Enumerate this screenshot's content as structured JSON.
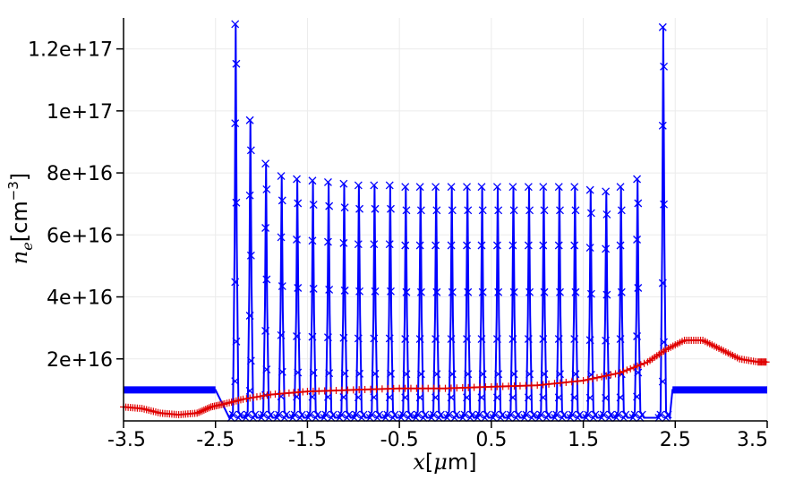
{
  "chart_data": {
    "type": "line",
    "title": "",
    "xlabel": {
      "var": "x",
      "open": "[",
      "unit_greek": "μ",
      "unit": "m",
      "close": "]"
    },
    "ylabel": {
      "var": "n",
      "sub": "e",
      "open": "[",
      "unit": "cm",
      "exp": "−3",
      "close": "]"
    },
    "xlim": [
      -3.5,
      3.5
    ],
    "ylim": [
      0,
      1.3e+17
    ],
    "x_ticks": [
      -3.5,
      -2.5,
      -1.5,
      -0.5,
      0.5,
      1.5,
      2.5,
      3.5
    ],
    "x_tick_labels": [
      "-3.5",
      "-2.5",
      "-1.5",
      "-0.5",
      "0.5",
      "1.5",
      "2.5",
      "3.5"
    ],
    "y_ticks": [
      2e+16,
      4e+16,
      6e+16,
      8e+16,
      1e+17,
      1.2e+17
    ],
    "y_tick_labels": [
      "2e+16",
      "4e+16",
      "6e+16",
      "8e+16",
      "1e+17",
      "1.2e+17"
    ],
    "grid": true,
    "legend": "none",
    "series": [
      {
        "color": "#0000ff",
        "marker": "x",
        "background_density": 1e+16,
        "plasma_region": [
          -2.5,
          2.45
        ],
        "trough_density": 1000000000000000.0,
        "spikes": [
          {
            "x": -2.28,
            "peak": 1.28e+17
          },
          {
            "x": -2.12,
            "peak": 9.7e+16
          },
          {
            "x": -1.95,
            "peak": 8.3e+16
          },
          {
            "x": -1.78,
            "peak": 7.9e+16
          },
          {
            "x": -1.61,
            "peak": 7.8e+16
          },
          {
            "x": -1.44,
            "peak": 7.75e+16
          },
          {
            "x": -1.27,
            "peak": 7.7e+16
          },
          {
            "x": -1.1,
            "peak": 7.65e+16
          },
          {
            "x": -0.94,
            "peak": 7.6e+16
          },
          {
            "x": -0.77,
            "peak": 7.6e+16
          },
          {
            "x": -0.6,
            "peak": 7.6e+16
          },
          {
            "x": -0.43,
            "peak": 7.55e+16
          },
          {
            "x": -0.27,
            "peak": 7.55e+16
          },
          {
            "x": -0.1,
            "peak": 7.55e+16
          },
          {
            "x": 0.07,
            "peak": 7.55e+16
          },
          {
            "x": 0.24,
            "peak": 7.55e+16
          },
          {
            "x": 0.4,
            "peak": 7.55e+16
          },
          {
            "x": 0.57,
            "peak": 7.55e+16
          },
          {
            "x": 0.74,
            "peak": 7.55e+16
          },
          {
            "x": 0.91,
            "peak": 7.55e+16
          },
          {
            "x": 1.07,
            "peak": 7.55e+16
          },
          {
            "x": 1.24,
            "peak": 7.55e+16
          },
          {
            "x": 1.41,
            "peak": 7.55e+16
          },
          {
            "x": 1.58,
            "peak": 7.45e+16
          },
          {
            "x": 1.75,
            "peak": 7.4e+16
          },
          {
            "x": 1.91,
            "peak": 7.55e+16
          },
          {
            "x": 2.09,
            "peak": 7.8e+16
          },
          {
            "x": 2.37,
            "peak": 1.27e+17
          }
        ]
      },
      {
        "color": "#e00000",
        "marker": "+",
        "x": [
          -3.5,
          -3.3,
          -3.1,
          -2.9,
          -2.7,
          -2.55,
          -2.4,
          -2.2,
          -1.9,
          -1.5,
          -1.0,
          -0.5,
          0.0,
          0.5,
          1.0,
          1.5,
          1.9,
          2.2,
          2.4,
          2.6,
          2.8,
          3.0,
          3.2,
          3.4,
          3.5
        ],
        "y": [
          4500000000000000.0,
          4000000000000000.0,
          2500000000000000.0,
          2000000000000000.0,
          2500000000000000.0,
          4500000000000000.0,
          5500000000000000.0,
          7000000000000000.0,
          8500000000000000.0,
          9500000000000000.0,
          1e+16,
          1.05e+16,
          1.05e+16,
          1.1e+16,
          1.15e+16,
          1.3e+16,
          1.55e+16,
          1.9e+16,
          2.3e+16,
          2.6e+16,
          2.6e+16,
          2.3e+16,
          2e+16,
          1.9e+16,
          1.9e+16
        ]
      }
    ]
  }
}
